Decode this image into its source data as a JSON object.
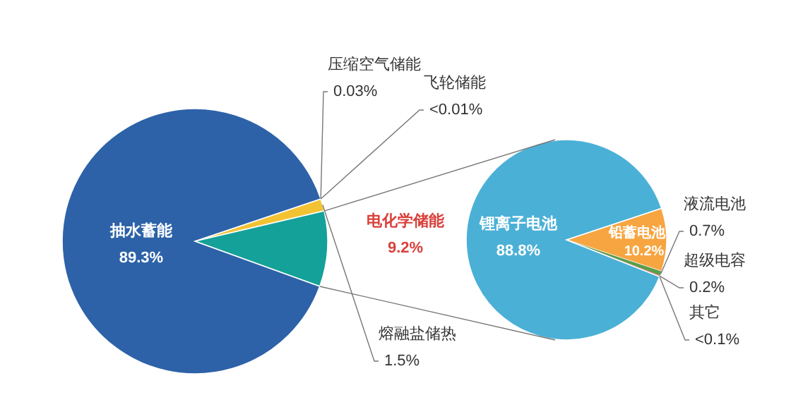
{
  "chart_data": [
    {
      "type": "pie",
      "legend": false,
      "categories": [
        "压缩空气储能",
        "飞轮储能",
        "熔融盐储热",
        "电化学储能",
        "抽水蓄能"
      ],
      "values": [
        null,
        null,
        1.5,
        9.2,
        89.3
      ],
      "colors": [
        null,
        null,
        "#f2c233",
        "#14a199",
        "#2d62a8"
      ],
      "value_labels": [
        "0.03%",
        "<0.01%",
        "1.5%",
        "9.2%",
        "89.3%"
      ]
    },
    {
      "type": "pie",
      "legend": false,
      "categories": [
        "铅蓄电池",
        "液流电池",
        "超级电容",
        "其它",
        "锂离子电池"
      ],
      "values": [
        10.2,
        0.7,
        0.2,
        null,
        88.8
      ],
      "colors": [
        "#f7a541",
        "#5a9e4b",
        "#e06060",
        null,
        "#4bb0d6"
      ],
      "value_labels": [
        "10.2%",
        "0.7%",
        "0.2%",
        "<0.1%",
        "88.8%"
      ]
    }
  ]
}
